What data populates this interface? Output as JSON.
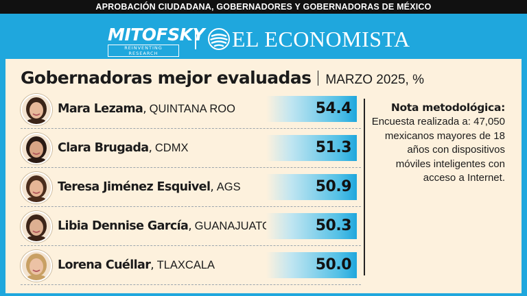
{
  "banner": "APROBACIÓN CIUDADANA, GOBERNADORES Y GOBERNADORAS DE MÉXICO",
  "brands": {
    "mitofsky": "MITOFSKY",
    "mitofsky_tagline": "REINVENTING RESEARCH",
    "economista": "EL ECONOMISTA"
  },
  "colors": {
    "background": "#1fa7dd",
    "panel": "#fdf1dd",
    "banner": "#111111",
    "bar_end": "#1fa7dd"
  },
  "chart_data": {
    "type": "table",
    "title": "Gobernadoras mejor evaluadas",
    "subtitle": "MARZO 2025, %",
    "rows": [
      {
        "name": "Mara Lezama",
        "state": "QUINTANA ROO",
        "value": "54.4"
      },
      {
        "name": "Clara Brugada",
        "state": "CDMX",
        "value": "51.3"
      },
      {
        "name": "Teresa Jiménez Esquivel",
        "state": "AGS",
        "value": "50.9"
      },
      {
        "name": "Libia Dennise García",
        "state": "GUANAJUATO",
        "value": "50.3"
      },
      {
        "name": "Lorena Cuéllar",
        "state": "TLAXCALA",
        "value": "50.0"
      }
    ]
  },
  "note": {
    "heading": "Nota metodológica:",
    "body": "Encuesta realizada a: 47,050 mexicanos mayores de 18 años con dispositivos móviles inteligentes con acceso a Internet."
  }
}
